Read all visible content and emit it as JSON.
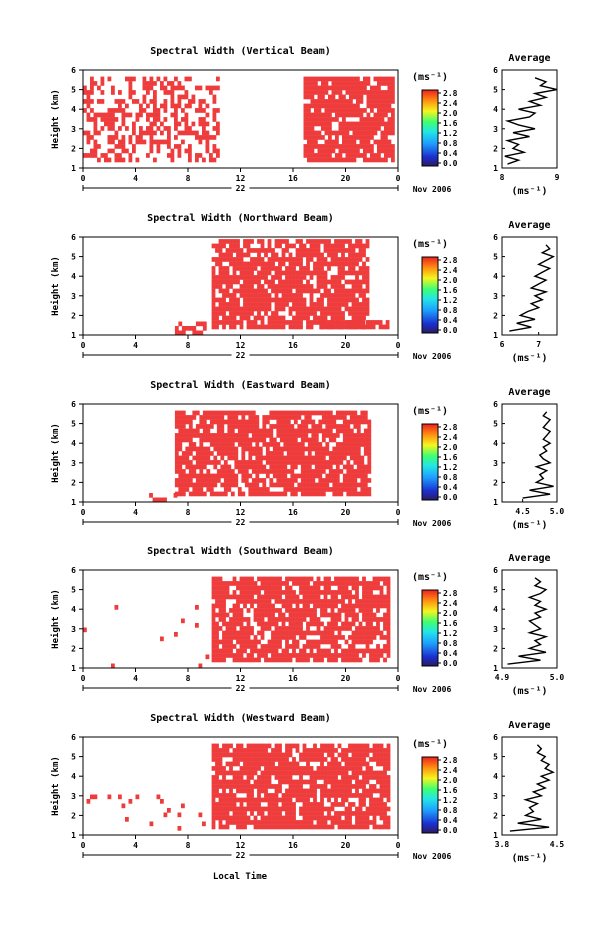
{
  "figure": {
    "xlabel_bottom": "Local Time",
    "date_label": "Nov 2006",
    "day_label": "22",
    "unit_label": "(ms⁻¹)",
    "avg_title": "Average",
    "avg_unit": "(ms⁻¹)",
    "y_label": "Height (km)"
  },
  "chart_data": [
    {
      "type": "heatmap",
      "title": "Spectral Width (Vertical Beam)",
      "xlabel": "",
      "ylabel": "Height (km)",
      "xlim": [
        0,
        24
      ],
      "ylim": [
        1,
        6
      ],
      "x_ticks": [
        "0",
        "4",
        "8",
        "12",
        "16",
        "20",
        "0"
      ],
      "y_ticks": [
        "1",
        "2",
        "3",
        "4",
        "5",
        "6"
      ],
      "colorbar": {
        "ticks": [
          "0.0",
          "0.4",
          "0.8",
          "1.2",
          "1.6",
          "2.0",
          "2.4",
          "2.8"
        ]
      },
      "dominant_value": 2.8,
      "data_regions": [
        {
          "t_start": 0.0,
          "t_end": 10.3,
          "h_start": 1.3,
          "h_end": 5.6,
          "fill": 0.45
        },
        {
          "t_start": 16.8,
          "t_end": 23.7,
          "h_start": 1.3,
          "h_end": 5.6,
          "fill": 0.85
        }
      ],
      "average_profile": {
        "xlim": [
          8,
          9
        ],
        "x_ticks": [
          "8",
          "9"
        ],
        "ylim": [
          1,
          6
        ],
        "height": [
          1.2,
          1.4,
          1.6,
          1.8,
          2.0,
          2.2,
          2.4,
          2.6,
          2.8,
          3.0,
          3.2,
          3.4,
          3.6,
          3.8,
          4.0,
          4.2,
          4.4,
          4.6,
          4.8,
          5.0,
          5.2,
          5.4,
          5.6
        ],
        "value": [
          8.1,
          8.3,
          8.05,
          8.4,
          8.2,
          8.3,
          8.1,
          8.5,
          8.2,
          8.6,
          8.3,
          8.1,
          8.5,
          8.6,
          8.3,
          8.7,
          8.5,
          8.8,
          8.6,
          9.0,
          8.7,
          8.8,
          8.6
        ]
      }
    },
    {
      "type": "heatmap",
      "title": "Spectral Width (Northward Beam)",
      "xlabel": "",
      "ylabel": "Height (km)",
      "xlim": [
        0,
        24
      ],
      "ylim": [
        1,
        6
      ],
      "x_ticks": [
        "0",
        "4",
        "8",
        "12",
        "16",
        "20",
        "0"
      ],
      "y_ticks": [
        "1",
        "2",
        "3",
        "4",
        "5",
        "6"
      ],
      "colorbar": {
        "ticks": [
          "0.0",
          "0.4",
          "0.8",
          "1.2",
          "1.6",
          "2.0",
          "2.4",
          "2.8"
        ]
      },
      "dominant_value": 2.8,
      "data_regions": [
        {
          "t_start": 7.0,
          "t_end": 9.8,
          "h_start": 1.0,
          "h_end": 1.6,
          "fill": 0.4
        },
        {
          "t_start": 9.8,
          "t_end": 21.8,
          "h_start": 1.3,
          "h_end": 5.8,
          "fill": 0.8
        },
        {
          "t_start": 18.0,
          "t_end": 23.3,
          "h_start": 1.3,
          "h_end": 1.7,
          "fill": 0.85
        }
      ],
      "average_profile": {
        "xlim": [
          6.0,
          7.5
        ],
        "x_ticks": [
          "6",
          "7"
        ],
        "ylim": [
          1,
          6
        ],
        "height": [
          1.2,
          1.4,
          1.6,
          1.8,
          2.0,
          2.2,
          2.4,
          2.6,
          2.8,
          3.0,
          3.2,
          3.4,
          3.6,
          3.8,
          4.0,
          4.2,
          4.4,
          4.6,
          4.8,
          5.0,
          5.2,
          5.4,
          5.6
        ],
        "value": [
          6.2,
          6.8,
          6.4,
          6.9,
          6.5,
          6.7,
          7.0,
          6.8,
          7.1,
          6.9,
          7.2,
          6.8,
          7.0,
          7.2,
          6.9,
          7.1,
          7.3,
          7.0,
          7.2,
          7.4,
          7.1,
          7.3,
          7.2
        ]
      }
    },
    {
      "type": "heatmap",
      "title": "Spectral Width (Eastward Beam)",
      "xlabel": "",
      "ylabel": "Height (km)",
      "xlim": [
        0,
        24
      ],
      "ylim": [
        1,
        6
      ],
      "x_ticks": [
        "0",
        "4",
        "8",
        "12",
        "16",
        "20",
        "0"
      ],
      "y_ticks": [
        "1",
        "2",
        "3",
        "4",
        "5",
        "6"
      ],
      "colorbar": {
        "ticks": [
          "0.0",
          "0.4",
          "0.8",
          "1.2",
          "1.6",
          "2.0",
          "2.4",
          "2.8"
        ]
      },
      "dominant_value": 2.8,
      "data_regions": [
        {
          "t_start": 4.5,
          "t_end": 7.0,
          "h_start": 1.0,
          "h_end": 1.4,
          "fill": 0.35
        },
        {
          "t_start": 7.0,
          "t_end": 21.8,
          "h_start": 1.3,
          "h_end": 5.6,
          "fill": 0.85
        }
      ],
      "average_profile": {
        "xlim": [
          4.2,
          5.0
        ],
        "x_ticks": [
          "4.5",
          "5.0"
        ],
        "ylim": [
          1,
          6
        ],
        "height": [
          1.2,
          1.4,
          1.6,
          1.8,
          2.0,
          2.2,
          2.4,
          2.6,
          2.8,
          3.0,
          3.2,
          3.4,
          3.6,
          3.8,
          4.0,
          4.2,
          4.4,
          4.6,
          4.8,
          5.0,
          5.2,
          5.4,
          5.6
        ],
        "value": [
          4.5,
          4.9,
          4.6,
          4.95,
          4.7,
          4.8,
          4.75,
          4.85,
          4.7,
          4.9,
          4.8,
          4.75,
          4.85,
          4.8,
          4.9,
          4.8,
          4.85,
          4.9,
          4.8,
          4.85,
          4.9,
          4.8,
          4.85
        ]
      }
    },
    {
      "type": "heatmap",
      "title": "Spectral Width (Southward Beam)",
      "xlabel": "",
      "ylabel": "Height (km)",
      "xlim": [
        0,
        24
      ],
      "ylim": [
        1,
        6
      ],
      "x_ticks": [
        "0",
        "4",
        "8",
        "12",
        "16",
        "20",
        "0"
      ],
      "y_ticks": [
        "1",
        "2",
        "3",
        "4",
        "5",
        "6"
      ],
      "colorbar": {
        "ticks": [
          "0.0",
          "0.4",
          "0.8",
          "1.2",
          "1.6",
          "2.0",
          "2.4",
          "2.8"
        ]
      },
      "dominant_value": 2.8,
      "data_regions": [
        {
          "t_start": 0.0,
          "t_end": 9.8,
          "h_start": 1.0,
          "h_end": 5.0,
          "fill": 0.02
        },
        {
          "t_start": 9.8,
          "t_end": 23.3,
          "h_start": 1.3,
          "h_end": 5.6,
          "fill": 0.8
        }
      ],
      "average_profile": {
        "xlim": [
          4.9,
          5.0
        ],
        "x_ticks": [
          "4.9",
          "5.0"
        ],
        "ylim": [
          1,
          6
        ],
        "height": [
          1.2,
          1.4,
          1.6,
          1.8,
          2.0,
          2.2,
          2.4,
          2.6,
          2.8,
          3.0,
          3.2,
          3.4,
          3.6,
          3.8,
          4.0,
          4.2,
          4.4,
          4.6,
          4.8,
          5.0,
          5.2,
          5.4,
          5.6
        ],
        "value": [
          4.91,
          4.97,
          4.93,
          4.98,
          4.95,
          4.97,
          4.96,
          4.98,
          4.95,
          4.97,
          4.96,
          4.95,
          4.97,
          4.96,
          4.98,
          4.96,
          4.97,
          4.95,
          4.97,
          4.98,
          4.96,
          4.97,
          4.96
        ]
      }
    },
    {
      "type": "heatmap",
      "title": "Spectral Width (Westward Beam)",
      "xlabel": "Local Time",
      "ylabel": "Height (km)",
      "xlim": [
        0,
        24
      ],
      "ylim": [
        1,
        6
      ],
      "x_ticks": [
        "0",
        "4",
        "8",
        "12",
        "16",
        "20",
        "0"
      ],
      "y_ticks": [
        "1",
        "2",
        "3",
        "4",
        "5",
        "6"
      ],
      "colorbar": {
        "ticks": [
          "0.0",
          "0.4",
          "0.8",
          "1.2",
          "1.6",
          "2.0",
          "2.4",
          "2.8"
        ]
      },
      "dominant_value": 2.8,
      "data_regions": [
        {
          "t_start": 0.0,
          "t_end": 9.8,
          "h_start": 1.0,
          "h_end": 3.0,
          "fill": 0.04
        },
        {
          "t_start": 9.8,
          "t_end": 23.3,
          "h_start": 1.3,
          "h_end": 5.6,
          "fill": 0.85
        }
      ],
      "average_profile": {
        "xlim": [
          3.8,
          4.5
        ],
        "x_ticks": [
          "3.8",
          "4.5"
        ],
        "ylim": [
          1,
          6
        ],
        "height": [
          1.2,
          1.4,
          1.6,
          1.8,
          2.0,
          2.2,
          2.4,
          2.6,
          2.8,
          3.0,
          3.2,
          3.4,
          3.6,
          3.8,
          4.0,
          4.2,
          4.4,
          4.6,
          4.8,
          5.0,
          5.2,
          5.4,
          5.6
        ],
        "value": [
          3.9,
          4.4,
          4.0,
          4.3,
          4.1,
          4.2,
          4.15,
          4.25,
          4.1,
          4.3,
          4.2,
          4.35,
          4.25,
          4.4,
          4.3,
          4.45,
          4.35,
          4.4,
          4.3,
          4.35,
          4.25,
          4.3,
          4.25
        ]
      }
    }
  ]
}
